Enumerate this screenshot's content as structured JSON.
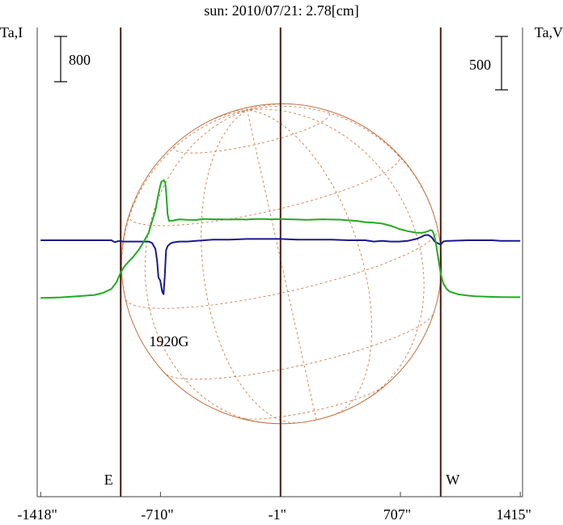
{
  "chart_data": {
    "type": "line",
    "title": "sun: 2010/07/21: 2.78[cm]",
    "left_axis_label": "Ta,I",
    "right_axis_label": "Ta,V",
    "left_scale_bar": "800",
    "right_scale_bar": "500",
    "xlim": [
      -1418,
      1415
    ],
    "x_tick_labels": [
      "-1418\"",
      "-710\"",
      "-1\"",
      "707\"",
      "1415\""
    ],
    "x_tick_values": [
      -1418,
      -710,
      -1,
      707,
      1415
    ],
    "limb_markers": [
      {
        "label": "E",
        "x": -945
      },
      {
        "label": "W",
        "x": 945
      }
    ],
    "center_marker_x": -1,
    "annotations": [
      {
        "text": "1920G",
        "x": -655
      }
    ],
    "solar_disk": {
      "radius_arcsec": 945,
      "grid": true
    },
    "colors": {
      "intensity": "#22aa22",
      "polarization": "#1a1a8c",
      "disk": "#c07040",
      "markers": "#4a1a10",
      "frame": "#404040",
      "title": "#1a1a6e"
    },
    "series": [
      {
        "key": "intensity_I",
        "x": [
          -1418,
          -1300,
          -1200,
          -1100,
          -1050,
          -1000,
          -970,
          -945,
          -925,
          -900,
          -870,
          -840,
          -810,
          -780,
          -760,
          -740,
          -725,
          -712,
          -705,
          -697,
          -690,
          -682,
          -675,
          -668,
          -660,
          -650,
          -640,
          -600,
          -550,
          -500,
          -450,
          -400,
          -350,
          -300,
          -250,
          -200,
          -150,
          -100,
          -50,
          0,
          50,
          100,
          150,
          200,
          250,
          300,
          350,
          400,
          450,
          500,
          550,
          600,
          650,
          700,
          750,
          800,
          830,
          850,
          870,
          885,
          895,
          905,
          915,
          925,
          935,
          945,
          960,
          980,
          1000,
          1050,
          1100,
          1150,
          1200,
          1250,
          1300,
          1350,
          1415
        ],
        "y": [
          -1020,
          -1008,
          -990,
          -965,
          -930,
          -860,
          -740,
          -570,
          -470,
          -385,
          -290,
          -175,
          -30,
          130,
          330,
          520,
          775,
          955,
          1030,
          1050,
          1060,
          1020,
          790,
          460,
          345,
          345,
          345,
          370,
          362,
          358,
          376,
          370,
          370,
          366,
          370,
          366,
          375,
          374,
          370,
          375,
          370,
          366,
          360,
          366,
          370,
          366,
          364,
          351,
          341,
          320,
          310,
          295,
          255,
          200,
          160,
          135,
          130,
          140,
          160,
          180,
          170,
          105,
          -20,
          -210,
          -400,
          -590,
          -760,
          -860,
          -910,
          -955,
          -975,
          -988,
          -995,
          -1000,
          -1003,
          -1005,
          -1005
        ]
      },
      {
        "key": "polarization_V",
        "x": [
          -1418,
          -1200,
          -1050,
          -1000,
          -980,
          -960,
          -945,
          -930,
          -900,
          -850,
          -780,
          -760,
          -740,
          -730,
          -722,
          -712,
          -700,
          -692,
          -685,
          -677,
          -668,
          -655,
          -640,
          -600,
          -550,
          -500,
          -400,
          -300,
          -200,
          -100,
          0,
          100,
          200,
          300,
          400,
          500,
          550,
          600,
          650,
          700,
          750,
          800,
          830,
          850,
          870,
          890,
          910,
          930,
          945,
          960,
          980,
          1000,
          1100,
          1200,
          1250,
          1300,
          1415
        ],
        "y": [
          0,
          0,
          0,
          0,
          -18,
          -8,
          -8,
          -12,
          -12,
          -12,
          -12,
          -25,
          -80,
          -190,
          -350,
          -375,
          -480,
          -505,
          -350,
          -95,
          -55,
          -35,
          -22,
          -12,
          -12,
          -6,
          6,
          6,
          12,
          12,
          12,
          6,
          6,
          6,
          0,
          0,
          -12,
          -6,
          -12,
          -12,
          -6,
          12,
          30,
          48,
          50,
          30,
          -12,
          -30,
          -40,
          -12,
          -6,
          -6,
          0,
          0,
          0,
          -6,
          -6
        ]
      }
    ]
  }
}
